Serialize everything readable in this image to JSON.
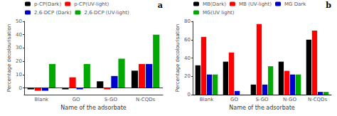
{
  "chart_data": [
    {
      "type": "bar",
      "categories": [
        "Blank",
        "GO",
        "S-GO",
        "N-CQDs"
      ],
      "series": [
        {
          "name": "p-CP(Dark)",
          "color": "#000000",
          "values": [
            -1,
            -1,
            5,
            13
          ]
        },
        {
          "name": "p-CP(UV-light)",
          "color": "#ff0000",
          "values": [
            -2,
            8,
            -1,
            18
          ]
        },
        {
          "name": "2,6-DCP (Dark)",
          "color": "#0000cc",
          "values": [
            -2,
            -1,
            9,
            18
          ]
        },
        {
          "name": "2,6-DCP (UV-light)",
          "color": "#00aa00",
          "values": [
            18,
            18,
            22,
            40
          ]
        }
      ],
      "ylim": [
        -5,
        50
      ],
      "yticks": [
        0,
        10,
        20,
        30,
        40,
        50
      ],
      "ylabel": "Percentage decolourisation",
      "xlabel": "Name of the adsorbate",
      "annotations": [
        "a"
      ],
      "legend": "top",
      "grid": false
    },
    {
      "type": "bar",
      "categories": [
        "Blank",
        "GO",
        "S-GO",
        "N-GO",
        "N-CQDs"
      ],
      "series": [
        {
          "name": "MB(Dark)",
          "color": "#000000",
          "values": [
            32,
            36,
            11,
            36,
            60
          ]
        },
        {
          "name": "MB (UV-light)",
          "color": "#ff0000",
          "values": [
            63,
            46,
            77,
            26,
            70
          ]
        },
        {
          "name": "MG Dark",
          "color": "#0000cc",
          "values": [
            22,
            4,
            11,
            22,
            3
          ]
        },
        {
          "name": "MG(UV light)",
          "color": "#00aa00",
          "values": [
            22,
            0,
            31,
            22,
            3
          ]
        }
      ],
      "ylim": [
        0,
        80
      ],
      "yticks": [
        0,
        20,
        40,
        60,
        80
      ],
      "ylabel": "Percentage decolourisation",
      "xlabel": "Name of the adsorbate",
      "annotations": [
        "b"
      ],
      "legend": "top",
      "grid": false
    }
  ]
}
